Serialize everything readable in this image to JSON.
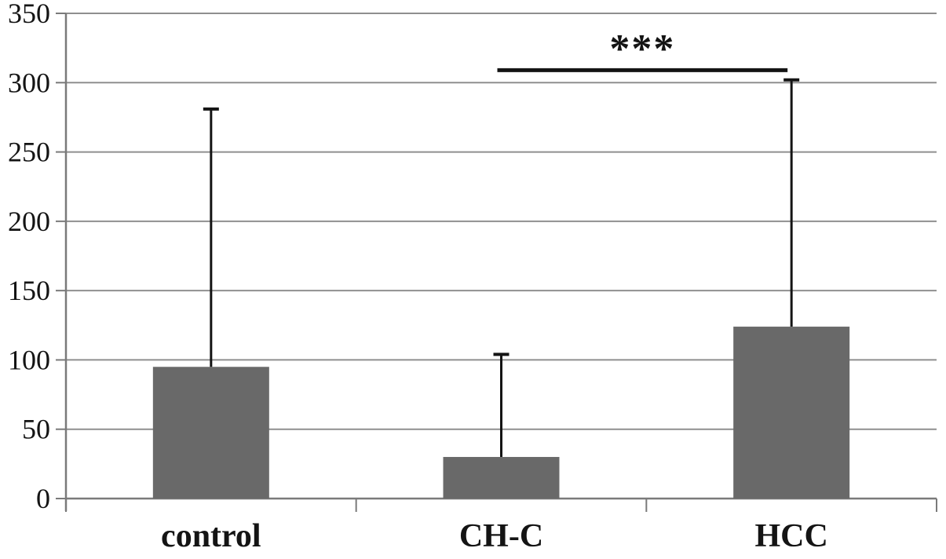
{
  "chart_data": {
    "type": "bar",
    "title": "",
    "xlabel": "",
    "ylabel": "",
    "categories": [
      "control",
      "CH-C",
      "HCC"
    ],
    "values": [
      95,
      30,
      124
    ],
    "error_upper": [
      281,
      104,
      302
    ],
    "ylim": [
      0,
      350
    ],
    "yticks": [
      0,
      50,
      100,
      150,
      200,
      250,
      300,
      350
    ],
    "grid": true,
    "legend_position": "none",
    "bar_color": "#696969",
    "gridline_color": "#8f8f8f",
    "axis_color": "#7a7a7a",
    "error_color": "#141414",
    "label_color": "#141414",
    "significance": {
      "label": "***",
      "from_category": "CH-C",
      "to_category": "HCC",
      "line_y_value": 309
    }
  }
}
